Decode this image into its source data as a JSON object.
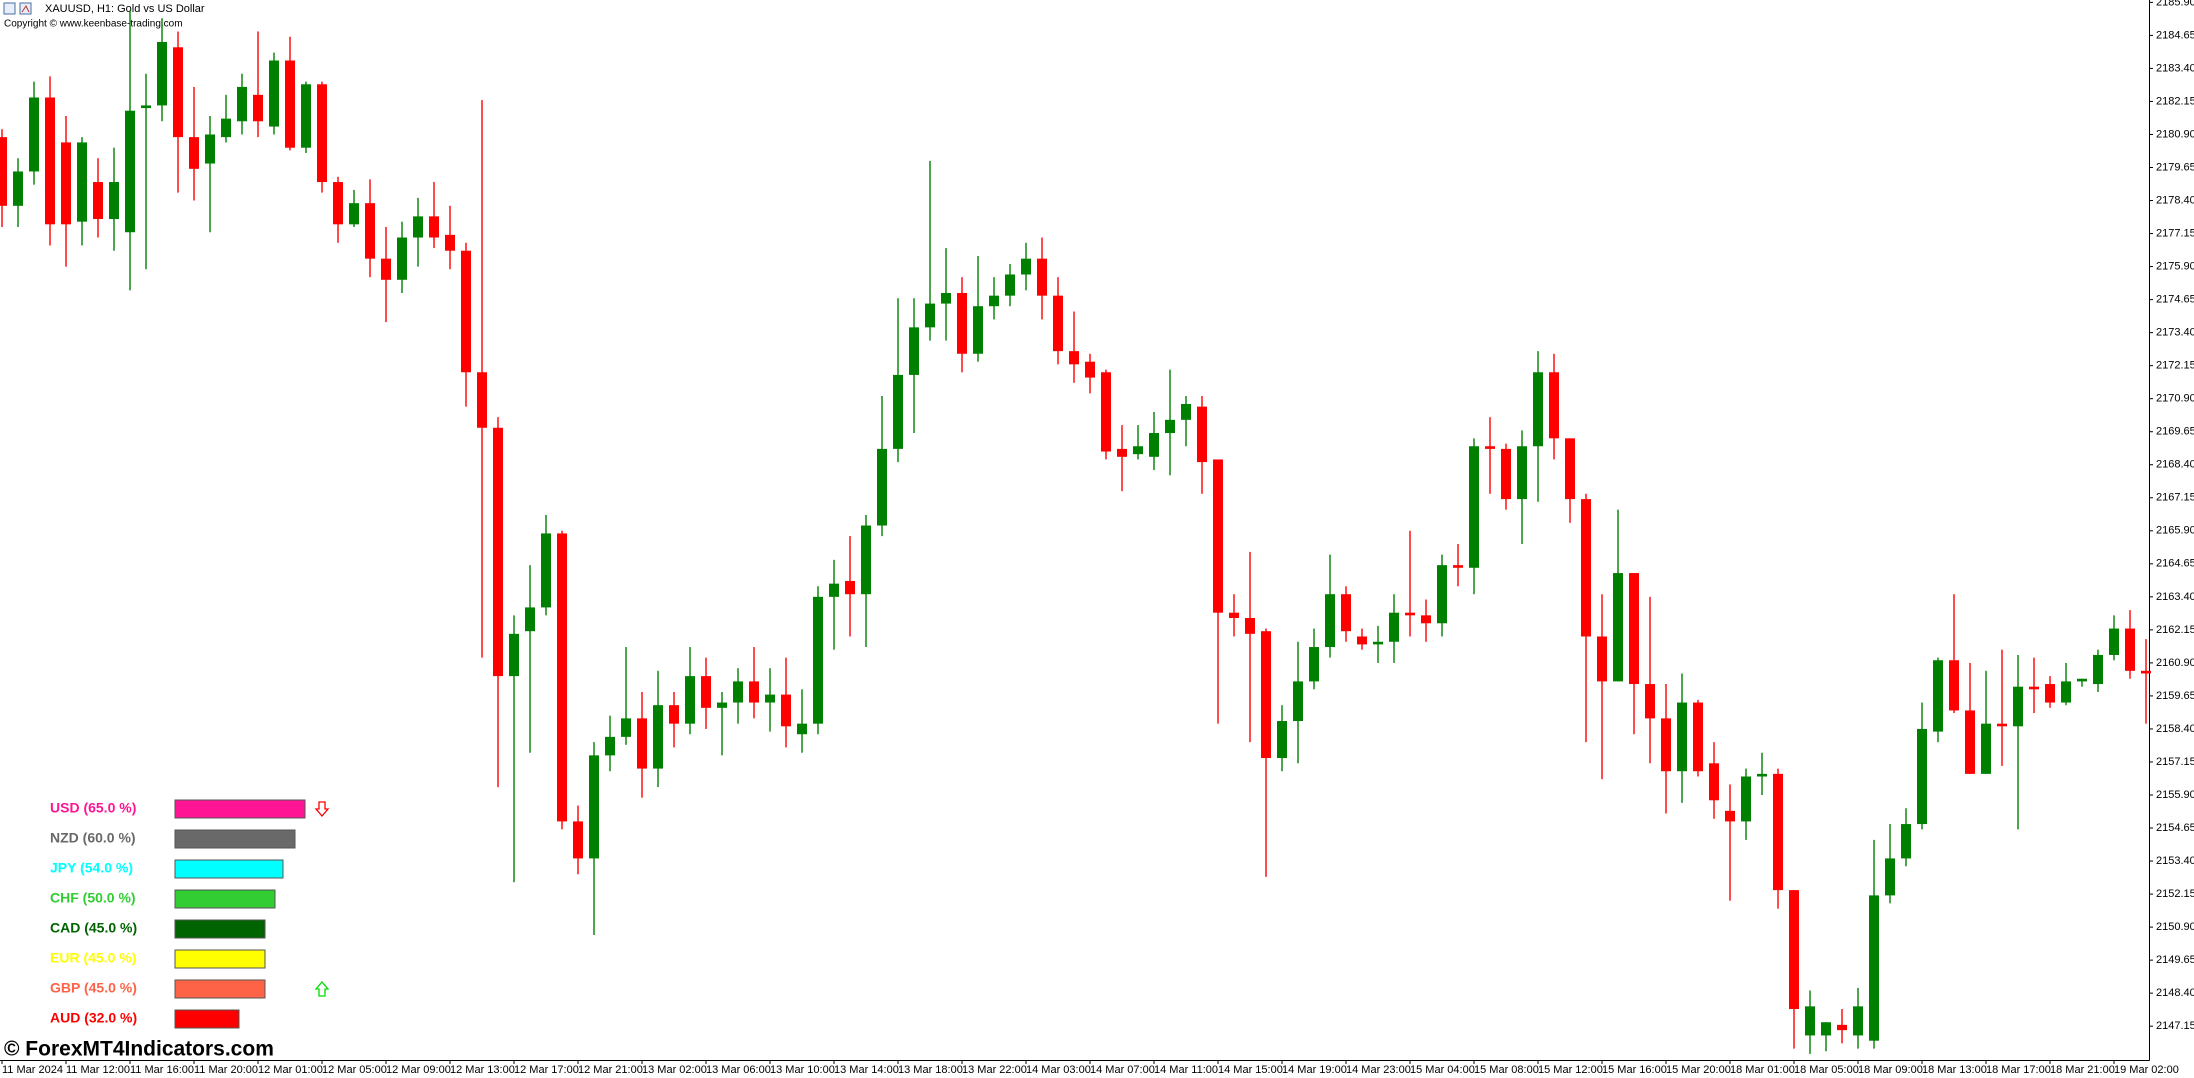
{
  "header": {
    "symbol": "XAUUSD, H1:  Gold vs US Dollar",
    "copyright": "Copyright © www.keenbase-trading.com"
  },
  "watermark": "© ForexMT4Indicators.com",
  "chart_data": [
    {
      "type": "candlestick",
      "up_color": "#008000",
      "down_color": "#ff0000",
      "ylim": [
        2145.87,
        2185.99
      ],
      "yticks": [
        {
          "value": 2185.9,
          "label": "2185.90"
        },
        2184.65,
        {
          "value": 2183.4,
          "label": "2183.40"
        },
        2182.15,
        {
          "value": 2180.9,
          "label": "2180.90"
        },
        2179.65,
        {
          "value": 2178.4,
          "label": "2178.40"
        },
        2177.15,
        {
          "value": 2175.9,
          "label": "2175.90"
        },
        2174.65,
        {
          "value": 2173.4,
          "label": "2173.40"
        },
        2172.15,
        {
          "value": 2170.9,
          "label": "2170.90"
        },
        2169.65,
        {
          "value": 2168.4,
          "label": "2168.40"
        },
        2167.15,
        {
          "value": 2165.9,
          "label": "2165.90"
        },
        2164.65,
        {
          "value": 2163.4,
          "label": "2163.40"
        },
        2162.15,
        {
          "value": 2160.9,
          "label": "2160.90"
        },
        2159.65,
        {
          "value": 2158.4,
          "label": "2158.40"
        },
        2157.15,
        {
          "value": 2155.9,
          "label": "2155.90"
        },
        2154.65,
        {
          "value": 2153.4,
          "label": "2153.40"
        },
        2152.15,
        {
          "value": 2150.9,
          "label": "2150.90"
        },
        2149.65,
        {
          "value": 2148.4,
          "label": "2148.40"
        },
        2147.15
      ],
      "categories": [
        "11 Mar 2024",
        null,
        null,
        null,
        "11 Mar 12:00",
        null,
        null,
        null,
        "11 Mar 16:00",
        null,
        null,
        null,
        "11 Mar 20:00",
        null,
        null,
        null,
        "12 Mar 01:00",
        null,
        null,
        null,
        "12 Mar 05:00",
        null,
        null,
        null,
        "12 Mar 09:00",
        null,
        null,
        null,
        "12 Mar 13:00",
        null,
        null,
        null,
        "12 Mar 17:00",
        null,
        null,
        null,
        "12 Mar 21:00",
        null,
        null,
        null,
        "13 Mar 02:00",
        null,
        null,
        null,
        "13 Mar 06:00",
        null,
        null,
        null,
        "13 Mar 10:00",
        null,
        null,
        null,
        "13 Mar 14:00",
        null,
        null,
        null,
        "13 Mar 18:00",
        null,
        null,
        null,
        "13 Mar 22:00",
        null,
        null,
        null,
        "14 Mar 03:00",
        null,
        null,
        null,
        "14 Mar 07:00",
        null,
        null,
        null,
        "14 Mar 11:00",
        null,
        null,
        null,
        "14 Mar 15:00",
        null,
        null,
        null,
        "14 Mar 19:00",
        null,
        null,
        null,
        "14 Mar 23:00",
        null,
        null,
        null,
        "15 Mar 04:00",
        null,
        null,
        null,
        "15 Mar 08:00",
        null,
        null,
        null,
        "15 Mar 12:00",
        null,
        null,
        null,
        "15 Mar 16:00",
        null,
        null,
        null,
        "15 Mar 20:00",
        null,
        null,
        null,
        "18 Mar 01:00",
        null,
        null,
        null,
        "18 Mar 05:00",
        null,
        null,
        null,
        "18 Mar 09:00",
        null,
        null,
        null,
        "18 Mar 13:00",
        null,
        null,
        null,
        "18 Mar 17:00",
        null,
        null,
        null,
        "18 Mar 21:00",
        null,
        null,
        null,
        "19 Mar 02:00",
        null,
        null
      ],
      "open": [
        2180.8,
        2178.2,
        2179.5,
        2182.3,
        2180.6,
        2177.6,
        2179.1,
        2177.7,
        2177.2,
        2181.9,
        2182.0,
        2184.2,
        2180.8,
        2179.8,
        2180.8,
        2181.4,
        2182.4,
        2181.2,
        2183.7,
        2180.4,
        2182.8,
        2179.1,
        2177.5,
        2178.3,
        2176.2,
        2175.4,
        2177.0,
        2177.8,
        2177.1,
        2176.5,
        2171.9,
        2169.8,
        2160.4,
        2162.1,
        2163.0,
        2165.8,
        2154.9,
        2153.5,
        2157.4,
        2158.1,
        2158.8,
        2156.9,
        2159.3,
        2158.6,
        2160.4,
        2159.2,
        2159.4,
        2160.2,
        2159.4,
        2159.7,
        2158.2,
        2158.6,
        2163.4,
        2164.0,
        2163.5,
        2166.1,
        2169.0,
        2171.8,
        2173.6,
        2174.5,
        2174.9,
        2172.6,
        2174.4,
        2174.8,
        2175.6,
        2176.2,
        2174.8,
        2172.7,
        2172.3,
        2171.9,
        2169.0,
        2168.8,
        2168.7,
        2169.6,
        2170.1,
        2170.6,
        2168.6,
        2162.8,
        2162.6,
        2162.1,
        2157.3,
        2158.7,
        2160.2,
        2161.5,
        2163.5,
        2161.9,
        2161.6,
        2161.7,
        2162.8,
        2162.7,
        2162.4,
        2164.6,
        2164.5,
        2169.1,
        2169.0,
        2167.1,
        2169.1,
        2171.9,
        2169.4,
        2167.1,
        2161.9,
        2160.2,
        2164.3,
        2160.1,
        2158.8,
        2156.8,
        2159.4,
        2157.1,
        2155.3,
        2154.9,
        2156.6,
        2156.7,
        2152.3,
        2146.8,
        2146.8,
        2147.2,
        2146.8,
        2146.6,
        2152.1,
        2153.5,
        2154.8,
        2158.3,
        2161.0,
        2159.1,
        2156.7,
        2158.6,
        2158.5,
        2160.0,
        2160.1,
        2159.4,
        2160.2,
        2160.1,
        2161.2,
        2162.2,
        2160.6
      ],
      "high": [
        2181.1,
        2180.0,
        2182.9,
        2183.1,
        2181.6,
        2180.8,
        2180.0,
        2180.4,
        2185.6,
        2183.2,
        2185.3,
        2184.8,
        2182.7,
        2181.6,
        2182.4,
        2183.2,
        2184.8,
        2184.0,
        2184.6,
        2182.9,
        2182.9,
        2179.3,
        2178.8,
        2179.2,
        2177.4,
        2177.6,
        2178.5,
        2179.1,
        2178.2,
        2176.8,
        2182.2,
        2170.2,
        2162.7,
        2164.6,
        2166.5,
        2165.9,
        2155.5,
        2157.9,
        2158.9,
        2161.5,
        2159.8,
        2160.6,
        2159.8,
        2161.5,
        2161.1,
        2159.8,
        2160.7,
        2161.5,
        2160.7,
        2161.1,
        2159.9,
        2163.8,
        2164.8,
        2165.7,
        2166.5,
        2171.0,
        2174.7,
        2174.7,
        2179.9,
        2176.6,
        2175.5,
        2176.3,
        2175.5,
        2176.0,
        2176.8,
        2177.0,
        2175.5,
        2174.2,
        2172.6,
        2172.0,
        2169.9,
        2169.9,
        2170.4,
        2172.0,
        2171.0,
        2171.0,
        2168.6,
        2163.5,
        2165.1,
        2162.2,
        2159.3,
        2161.7,
        2162.2,
        2165.0,
        2163.8,
        2162.2,
        2162.3,
        2163.5,
        2165.9,
        2163.3,
        2165.0,
        2165.4,
        2169.4,
        2170.2,
        2169.2,
        2169.7,
        2172.7,
        2172.6,
        2169.4,
        2167.3,
        2163.5,
        2166.7,
        2164.3,
        2163.4,
        2160.1,
        2160.5,
        2159.5,
        2157.9,
        2156.3,
        2156.9,
        2157.5,
        2156.9,
        2152.3,
        2148.5,
        2147.3,
        2147.8,
        2148.6,
        2154.2,
        2154.8,
        2155.4,
        2159.4,
        2161.1,
        2163.5,
        2160.9,
        2160.6,
        2161.4,
        2161.2,
        2161.1,
        2160.4,
        2160.9,
        2160.3,
        2161.4,
        2162.7,
        2162.9,
        2161.8
      ],
      "low": [
        2177.4,
        2177.4,
        2179.0,
        2176.7,
        2175.9,
        2176.7,
        2177.0,
        2176.5,
        2175.0,
        2175.8,
        2181.4,
        2178.7,
        2178.4,
        2177.2,
        2180.6,
        2180.9,
        2180.8,
        2180.9,
        2180.3,
        2180.2,
        2178.7,
        2176.8,
        2177.4,
        2175.5,
        2173.8,
        2174.9,
        2175.9,
        2176.6,
        2175.8,
        2170.6,
        2161.1,
        2156.2,
        2152.6,
        2157.5,
        2162.7,
        2154.6,
        2152.9,
        2150.6,
        2156.8,
        2157.8,
        2155.8,
        2156.2,
        2157.7,
        2158.2,
        2158.4,
        2157.4,
        2158.6,
        2158.8,
        2158.3,
        2157.7,
        2157.5,
        2158.2,
        2161.4,
        2161.9,
        2161.5,
        2165.7,
        2168.5,
        2169.6,
        2173.1,
        2173.1,
        2171.9,
        2172.3,
        2173.9,
        2174.4,
        2175.0,
        2173.9,
        2172.2,
        2171.5,
        2171.1,
        2168.6,
        2167.4,
        2168.6,
        2168.2,
        2168.0,
        2169.1,
        2167.3,
        2158.6,
        2161.9,
        2157.9,
        2152.8,
        2156.8,
        2157.1,
        2159.9,
        2161.1,
        2161.7,
        2161.4,
        2160.9,
        2160.9,
        2161.9,
        2161.7,
        2161.9,
        2163.8,
        2163.5,
        2167.3,
        2166.7,
        2165.4,
        2167.0,
        2168.6,
        2166.2,
        2157.9,
        2156.5,
        2160.2,
        2158.2,
        2157.1,
        2155.2,
        2155.6,
        2156.6,
        2155.0,
        2151.9,
        2154.2,
        2155.9,
        2151.6,
        2146.3,
        2146.1,
        2146.2,
        2146.5,
        2146.3,
        2146.3,
        2151.8,
        2153.2,
        2154.6,
        2157.9,
        2159.0,
        2156.7,
        2156.7,
        2157.0,
        2154.6,
        2159.0,
        2159.2,
        2159.3,
        2160.0,
        2159.8,
        2161.0,
        2160.3,
        2158.6
      ],
      "close": [
        2178.2,
        2179.5,
        2182.3,
        2177.5,
        2177.5,
        2180.6,
        2177.7,
        2179.1,
        2181.8,
        2182.0,
        2184.4,
        2180.8,
        2179.6,
        2180.9,
        2181.5,
        2182.7,
        2181.4,
        2183.7,
        2180.4,
        2182.8,
        2179.1,
        2177.5,
        2178.3,
        2176.2,
        2175.4,
        2177.0,
        2177.8,
        2177.0,
        2176.5,
        2171.9,
        2169.8,
        2160.4,
        2162.0,
        2163.0,
        2165.8,
        2154.9,
        2153.5,
        2157.4,
        2158.1,
        2158.8,
        2156.9,
        2159.3,
        2158.6,
        2160.4,
        2159.2,
        2159.4,
        2160.2,
        2159.4,
        2159.7,
        2158.5,
        2158.6,
        2163.4,
        2163.9,
        2163.5,
        2166.1,
        2169.0,
        2171.8,
        2173.6,
        2174.5,
        2174.9,
        2172.6,
        2174.4,
        2174.8,
        2175.6,
        2176.2,
        2174.8,
        2172.7,
        2172.2,
        2171.7,
        2168.9,
        2168.7,
        2169.1,
        2169.6,
        2170.1,
        2170.7,
        2168.5,
        2162.8,
        2162.6,
        2162.0,
        2157.3,
        2158.7,
        2160.2,
        2161.5,
        2163.5,
        2162.1,
        2161.6,
        2161.7,
        2162.8,
        2162.7,
        2162.4,
        2164.6,
        2164.5,
        2169.1,
        2169.0,
        2167.1,
        2169.1,
        2171.9,
        2169.4,
        2167.1,
        2161.9,
        2160.2,
        2164.3,
        2160.1,
        2158.8,
        2156.8,
        2159.4,
        2156.8,
        2155.7,
        2154.9,
        2156.6,
        2156.7,
        2152.3,
        2147.8,
        2147.9,
        2147.3,
        2147.0,
        2147.9,
        2152.1,
        2153.5,
        2154.8,
        2158.4,
        2161.0,
        2159.1,
        2156.7,
        2158.6,
        2158.5,
        2160.0,
        2159.9,
        2159.4,
        2160.2,
        2160.3,
        2161.2,
        2162.2,
        2160.6,
        2160.5
      ]
    },
    {
      "type": "bar",
      "orientation": "horizontal",
      "values": [
        65.0,
        60.0,
        54.0,
        50.0,
        45.0,
        45.0,
        45.0,
        32.0
      ],
      "value_labels": [
        "USD (65.0 %)",
        "NZD (60.0 %)",
        "JPY (54.0 %)",
        "CHF (50.0 %)",
        "CAD (45.0 %)",
        "EUR (45.0 %)",
        "GBP (45.0 %)",
        "AUD (32.0 %)"
      ],
      "colors": [
        "#ff1493",
        "#696969",
        "#00ffff",
        "#32cd32",
        "#006400",
        "#ffff00",
        "#ff6347",
        "#ff0000"
      ],
      "arrows": [
        "down",
        null,
        null,
        null,
        null,
        null,
        "up",
        null
      ],
      "arrow_colors": {
        "up": "#00dd00",
        "down": "#ff0000"
      }
    }
  ]
}
